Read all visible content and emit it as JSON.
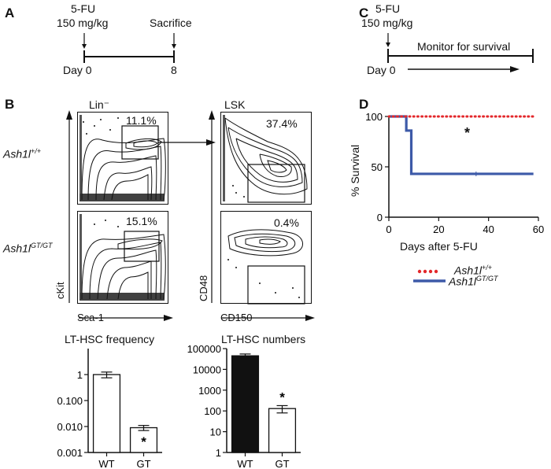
{
  "panels": {
    "A": {
      "letter": "A",
      "dose_line1": "5-FU",
      "dose_line2": "150 mg/kg",
      "end_label": "Sacrifice",
      "start_day": "Day 0",
      "end_day": "8"
    },
    "B": {
      "letter": "B",
      "col1_title": "Lin⁻",
      "col2_title": "LSK",
      "row1_genotype": "Ash1l+/+",
      "row1_genotype_base": "Ash1l",
      "row1_genotype_sup": "+/+",
      "row2_genotype_base": "Ash1l",
      "row2_genotype_sup": "GT/GT",
      "pct_r1c1": "11.1%",
      "pct_r1c2": "37.4%",
      "pct_r2c1": "15.1%",
      "pct_r2c2": "0.4%",
      "y_axis_col1": "cKit",
      "x_axis_col1": "Sca-1",
      "y_axis_col2": "CD48",
      "x_axis_col2": "CD150"
    },
    "C": {
      "letter": "C",
      "dose_line1": "5-FU",
      "dose_line2": "150 mg/kg",
      "monitor_label": "Monitor for survival",
      "start_day": "Day 0"
    },
    "D": {
      "letter": "D",
      "legend_wt_base": "Ash1l",
      "legend_wt_sup": "+/+",
      "legend_gt_base": "Ash1l",
      "legend_gt_sup": "GT/GT",
      "significance": "*"
    }
  },
  "colors": {
    "wt_survival": "#e3282b",
    "gt_survival": "#3d5aa8",
    "bar_wt_numbers": "#111111",
    "bar_gt": "#ffffff"
  },
  "chart_data": [
    {
      "type": "line",
      "title": "",
      "xlabel": "Days after 5-FU",
      "ylabel": "% Survival",
      "xlim": [
        0,
        60
      ],
      "ylim": [
        0,
        100
      ],
      "xticks": [
        "0",
        "20",
        "40",
        "60"
      ],
      "yticks": [
        "0",
        "50",
        "100"
      ],
      "series": [
        {
          "name": "Ash1l+/+",
          "style": "dotted",
          "x": [
            0,
            58
          ],
          "y": [
            100,
            100
          ]
        },
        {
          "name": "Ash1lGT/GT",
          "style": "step",
          "x": [
            0,
            7,
            7,
            9,
            9,
            58
          ],
          "y": [
            100,
            100,
            86,
            86,
            43,
            43
          ]
        }
      ],
      "annotation": "*",
      "legend_position": "bottom"
    },
    {
      "type": "bar",
      "title": "LT-HSC frequency",
      "xlabel": "",
      "ylabel": "",
      "scale": "log",
      "ylim": [
        0.001,
        10
      ],
      "yticks": [
        "0.001",
        "0.010",
        "0.100",
        "1"
      ],
      "categories": [
        "WT",
        "GT"
      ],
      "values": [
        1.0,
        0.009
      ],
      "errors": [
        0.25,
        0.002
      ],
      "annotation": "*"
    },
    {
      "type": "bar",
      "title": "LT-HSC numbers",
      "xlabel": "",
      "ylabel": "",
      "scale": "log",
      "ylim": [
        1,
        100000
      ],
      "yticks": [
        "1",
        "10",
        "100",
        "1000",
        "10000",
        "100000"
      ],
      "categories": [
        "WT",
        "GT"
      ],
      "values": [
        45000,
        130
      ],
      "errors": [
        10000,
        50
      ],
      "annotation": "*"
    }
  ]
}
